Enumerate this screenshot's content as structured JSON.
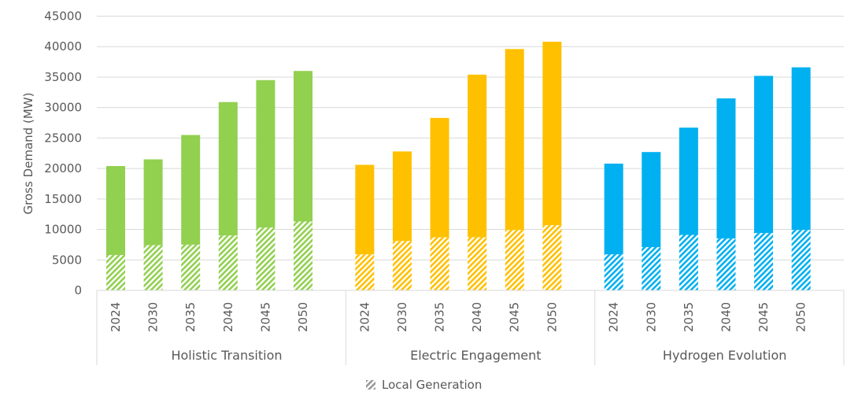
{
  "chart_data": {
    "type": "bar",
    "stacked": true,
    "ylabel": "Gross Demand (MW)",
    "xlabel": "",
    "ylim": [
      0,
      45000
    ],
    "yticks": [
      "0",
      "5000",
      "10000",
      "15000",
      "20000",
      "25000",
      "30000",
      "35000",
      "40000",
      "45000"
    ],
    "grid": true,
    "legend_position": "bottom",
    "legend": [
      {
        "name": "Local Generation",
        "pattern": "hatched"
      }
    ],
    "categories": [
      "2024",
      "2030",
      "2035",
      "2040",
      "2045",
      "2050"
    ],
    "groups": [
      {
        "name": "Holistic Transition",
        "color": "#92D050",
        "total": [
          20400,
          21500,
          25500,
          30900,
          34500,
          36000
        ],
        "local_generation": [
          5800,
          7400,
          7500,
          9000,
          10300,
          11300
        ]
      },
      {
        "name": "Electric Engagement",
        "color": "#FFC000",
        "total": [
          20600,
          22800,
          28300,
          35400,
          39600,
          40800
        ],
        "local_generation": [
          5900,
          8100,
          8700,
          8700,
          9900,
          10700
        ]
      },
      {
        "name": "Hydrogen Evolution",
        "color": "#00B0F0",
        "total": [
          20800,
          22700,
          26700,
          31500,
          35200,
          36600
        ],
        "local_generation": [
          5900,
          7100,
          9100,
          8500,
          9400,
          9900
        ]
      }
    ]
  }
}
